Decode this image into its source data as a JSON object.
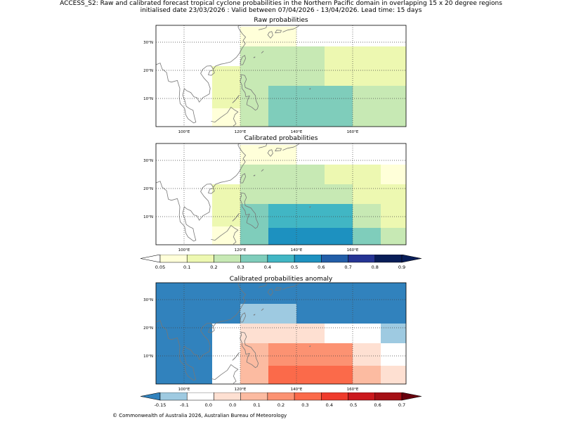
{
  "header": {
    "line1": "ACCESS_S2: Raw and calibrated forecast tropical cyclone probabilities in the Northern Pacific domain in overlapping 15 x 20 degree regions",
    "line2": "initialised date 23/03/2026 :  Valid between 07/04/2026 - 13/04/2026. Lead time: 15 days"
  },
  "axes": {
    "lon_labels": [
      "100°E",
      "120°E",
      "140°E",
      "160°E"
    ],
    "lon_values": [
      100,
      120,
      140,
      160
    ],
    "lat_labels": [
      "10°N",
      "20°N",
      "30°N"
    ],
    "lat_values": [
      10,
      20,
      30
    ],
    "lon_range": [
      90,
      179
    ],
    "lat_range": [
      0,
      36
    ]
  },
  "colorbars": {
    "probability": {
      "labels": [
        "0.05",
        "0.1",
        "0.2",
        "0.3",
        "0.4",
        "0.5",
        "0.6",
        "0.7",
        "0.8",
        "0.9"
      ],
      "colors": [
        "#ffffd9",
        "#edf8b1",
        "#c7e9b4",
        "#7fcdbb",
        "#41b6c4",
        "#1d91c0",
        "#225ea8",
        "#253494",
        "#081d58"
      ],
      "under_color": "#ffffff",
      "over_color": "#081d58"
    },
    "anomaly": {
      "labels": [
        "-0.15",
        "-0.1",
        "0.0",
        "0.0",
        "0.1",
        "0.2",
        "0.3",
        "0.4",
        "0.5",
        "0.6",
        "0.7"
      ],
      "colors": [
        "#9ecae1",
        "#ffffff",
        "#fee0d2",
        "#fcbba1",
        "#fc9272",
        "#fb6a4a",
        "#ef3b2c",
        "#cb181d",
        "#a50f15"
      ],
      "under_color": "#3182bd",
      "over_color": "#67000d"
    }
  },
  "panels": [
    {
      "title": "Raw probabilities",
      "cells": [
        {
          "lon": [
            120,
            140
          ],
          "lat": [
            28.5,
            35.5
          ],
          "color": "#ffffd9"
        },
        {
          "lon": [
            110,
            120
          ],
          "lat": [
            21.5,
            35.5
          ],
          "color": "#ffffff"
        },
        {
          "lon": [
            110,
            120
          ],
          "lat": [
            6.5,
            21.5
          ],
          "color": "#edf8b1"
        },
        {
          "lon": [
            110,
            120
          ],
          "lat": [
            0,
            6.5
          ],
          "color": "#ffffd9"
        },
        {
          "lon": [
            120,
            150
          ],
          "lat": [
            21.5,
            28.5
          ],
          "color": "#c7e9b4"
        },
        {
          "lon": [
            150,
            179
          ],
          "lat": [
            21.5,
            28.5
          ],
          "color": "#edf8b1"
        },
        {
          "lon": [
            120,
            130
          ],
          "lat": [
            0,
            21.5
          ],
          "color": "#c7e9b4"
        },
        {
          "lon": [
            130,
            140
          ],
          "lat": [
            14.5,
            21.5
          ],
          "color": "#c7e9b4"
        },
        {
          "lon": [
            140,
            150
          ],
          "lat": [
            14.5,
            21.5
          ],
          "color": "#c7e9b4"
        },
        {
          "lon": [
            150,
            179
          ],
          "lat": [
            14.5,
            21.5
          ],
          "color": "#edf8b1"
        },
        {
          "lon": [
            130,
            140
          ],
          "lat": [
            0,
            14.5
          ],
          "color": "#7fcdbb"
        },
        {
          "lon": [
            140,
            160
          ],
          "lat": [
            0,
            14.5
          ],
          "color": "#7fcdbb"
        },
        {
          "lon": [
            160,
            179
          ],
          "lat": [
            0,
            14.5
          ],
          "color": "#c7e9b4"
        }
      ]
    },
    {
      "title": "Calibrated probabilities",
      "cells": [
        {
          "lon": [
            120,
            140
          ],
          "lat": [
            28.5,
            35.5
          ],
          "color": "#ffffd9"
        },
        {
          "lon": [
            110,
            120
          ],
          "lat": [
            21.5,
            35.5
          ],
          "color": "#ffffff"
        },
        {
          "lon": [
            110,
            120
          ],
          "lat": [
            6.5,
            21.5
          ],
          "color": "#edf8b1"
        },
        {
          "lon": [
            110,
            120
          ],
          "lat": [
            0,
            6.5
          ],
          "color": "#ffffd9"
        },
        {
          "lon": [
            120,
            150
          ],
          "lat": [
            21.5,
            28.5
          ],
          "color": "#c7e9b4"
        },
        {
          "lon": [
            150,
            170
          ],
          "lat": [
            21.5,
            28.5
          ],
          "color": "#edf8b1"
        },
        {
          "lon": [
            170,
            179
          ],
          "lat": [
            21.5,
            28.5
          ],
          "color": "#ffffd9"
        },
        {
          "lon": [
            120,
            130
          ],
          "lat": [
            14.5,
            21.5
          ],
          "color": "#c7e9b4"
        },
        {
          "lon": [
            130,
            160
          ],
          "lat": [
            14.5,
            21.5
          ],
          "color": "#c7e9b4"
        },
        {
          "lon": [
            160,
            170
          ],
          "lat": [
            14.5,
            21.5
          ],
          "color": "#edf8b1"
        },
        {
          "lon": [
            170,
            179
          ],
          "lat": [
            14.5,
            21.5
          ],
          "color": "#edf8b1"
        },
        {
          "lon": [
            120,
            130
          ],
          "lat": [
            0,
            14.5
          ],
          "color": "#7fcdbb"
        },
        {
          "lon": [
            130,
            160
          ],
          "lat": [
            6,
            14.5
          ],
          "color": "#41b6c4"
        },
        {
          "lon": [
            160,
            170
          ],
          "lat": [
            6,
            14.5
          ],
          "color": "#c7e9b4"
        },
        {
          "lon": [
            170,
            179
          ],
          "lat": [
            6,
            14.5
          ],
          "color": "#edf8b1"
        },
        {
          "lon": [
            130,
            160
          ],
          "lat": [
            0,
            6
          ],
          "color": "#1d91c0"
        },
        {
          "lon": [
            160,
            170
          ],
          "lat": [
            0,
            6
          ],
          "color": "#7fcdbb"
        },
        {
          "lon": [
            170,
            179
          ],
          "lat": [
            0,
            6
          ],
          "color": "#c7e9b4"
        }
      ]
    },
    {
      "title": "Calibrated probabilities anomaly",
      "cells": [
        {
          "lon": [
            90,
            110
          ],
          "lat": [
            0,
            36
          ],
          "color": "#3182bd"
        },
        {
          "lon": [
            110,
            120
          ],
          "lat": [
            21.5,
            36
          ],
          "color": "#3182bd"
        },
        {
          "lon": [
            120,
            140
          ],
          "lat": [
            28.5,
            36
          ],
          "color": "#3182bd"
        },
        {
          "lon": [
            140,
            179
          ],
          "lat": [
            21.5,
            36
          ],
          "color": "#3182bd"
        },
        {
          "lon": [
            120,
            140
          ],
          "lat": [
            21.5,
            28.5
          ],
          "color": "#9ecae1"
        },
        {
          "lon": [
            170,
            179
          ],
          "lat": [
            14.5,
            21.5
          ],
          "color": "#9ecae1"
        },
        {
          "lon": [
            110,
            120
          ],
          "lat": [
            0,
            21.5
          ],
          "color": "#ffffff"
        },
        {
          "lon": [
            120,
            150
          ],
          "lat": [
            14.5,
            21.5
          ],
          "color": "#fee0d2"
        },
        {
          "lon": [
            150,
            170
          ],
          "lat": [
            14.5,
            21.5
          ],
          "color": "#ffffff"
        },
        {
          "lon": [
            170,
            179
          ],
          "lat": [
            6.5,
            14.5
          ],
          "color": "#ffffff"
        },
        {
          "lon": [
            120,
            130
          ],
          "lat": [
            0,
            14.5
          ],
          "color": "#fcbba1"
        },
        {
          "lon": [
            130,
            160
          ],
          "lat": [
            6.5,
            14.5
          ],
          "color": "#fc9272"
        },
        {
          "lon": [
            160,
            170
          ],
          "lat": [
            6.5,
            14.5
          ],
          "color": "#fee0d2"
        },
        {
          "lon": [
            130,
            160
          ],
          "lat": [
            0,
            6.5
          ],
          "color": "#fb6a4a"
        },
        {
          "lon": [
            160,
            170
          ],
          "lat": [
            0,
            6.5
          ],
          "color": "#fcbba1"
        },
        {
          "lon": [
            170,
            179
          ],
          "lat": [
            0,
            6.5
          ],
          "color": "#fee0d2"
        }
      ]
    }
  ],
  "footer": "© Commonwealth of Australia 2026, Australian Bureau of Meteorology"
}
